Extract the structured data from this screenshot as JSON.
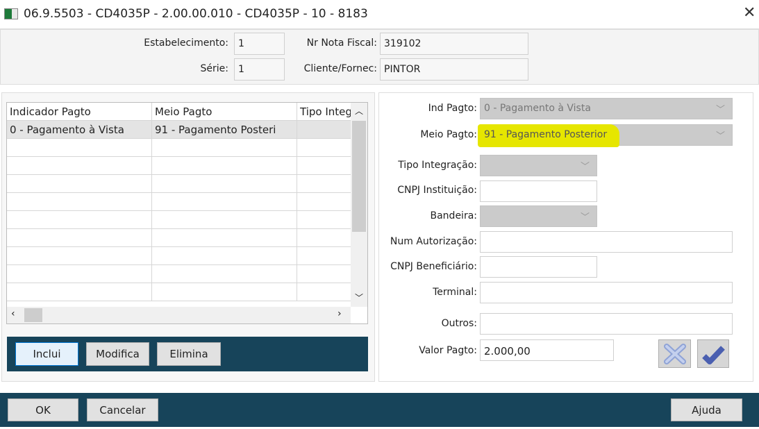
{
  "window": {
    "title": "06.9.5503 - CD4035P - 2.00.00.010 - CD4035P - 10 - 8183"
  },
  "header": {
    "estabelecimento": {
      "label": "Estabelecimento:",
      "value": "1"
    },
    "serie": {
      "label": "Série:",
      "value": "1"
    },
    "nr_nota": {
      "label": "Nr Nota Fiscal:",
      "value": "319102"
    },
    "cliente": {
      "label": "Cliente/Fornec:",
      "value": "PINTOR"
    }
  },
  "grid": {
    "columns": [
      "Indicador Pagto",
      "Meio Pagto",
      "Tipo Integ"
    ],
    "rows": [
      [
        "0 - Pagamento à Vista",
        "91 - Pagamento Posteri",
        ""
      ]
    ]
  },
  "grid_buttons": {
    "inclui": "Inclui",
    "modifica": "Modifica",
    "elimina": "Elimina"
  },
  "form": {
    "ind_pagto": {
      "label": "Ind Pagto:",
      "value": "0 - Pagamento à Vista"
    },
    "meio_pagto": {
      "label": "Meio Pagto:",
      "value": "91 - Pagamento Posterior",
      "highlight": "#e6e600"
    },
    "tipo_integracao": {
      "label": "Tipo Integração:",
      "value": ""
    },
    "cnpj_instituicao": {
      "label": "CNPJ Instituição:",
      "value": ""
    },
    "bandeira": {
      "label": "Bandeira:",
      "value": ""
    },
    "num_autorizacao": {
      "label": "Num Autorização:",
      "value": ""
    },
    "cnpj_beneficiario": {
      "label": "CNPJ Beneficiário:",
      "value": ""
    },
    "terminal": {
      "label": "Terminal:",
      "value": ""
    },
    "outros": {
      "label": "Outros:",
      "value": ""
    },
    "valor_pagto": {
      "label": "Valor Pagto:",
      "value": "2.000,00"
    }
  },
  "footer": {
    "ok": "OK",
    "cancelar": "Cancelar",
    "ajuda": "Ajuda"
  },
  "colors": {
    "bar": "#17445a",
    "accent": "#4a5fb0"
  }
}
